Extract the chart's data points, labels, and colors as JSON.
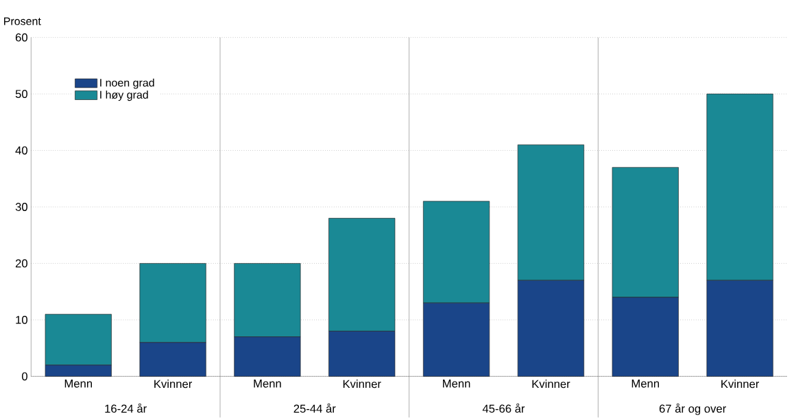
{
  "chart_data": {
    "type": "bar",
    "stacked": true,
    "ylabel": "Prosent",
    "categories": [
      "Menn",
      "Kvinner",
      "Menn",
      "Kvinner",
      "Menn",
      "Kvinner",
      "Menn",
      "Kvinner"
    ],
    "series": [
      {
        "name": "I noen grad",
        "color": "#1a4589",
        "values": [
          2,
          6,
          7,
          8,
          13,
          17,
          14,
          17
        ]
      },
      {
        "name": "I høy grad",
        "color": "#1a8995",
        "values": [
          9,
          14,
          13,
          20,
          18,
          24,
          23,
          33
        ]
      }
    ],
    "annotations": [
      "16-24 år",
      "25-44 år",
      "45-66 år",
      "67 år og over"
    ],
    "ylim": [
      0,
      60
    ],
    "yticks": [
      0,
      10,
      20,
      30,
      40,
      50,
      60
    ],
    "grid": "y",
    "legend": "top left"
  }
}
